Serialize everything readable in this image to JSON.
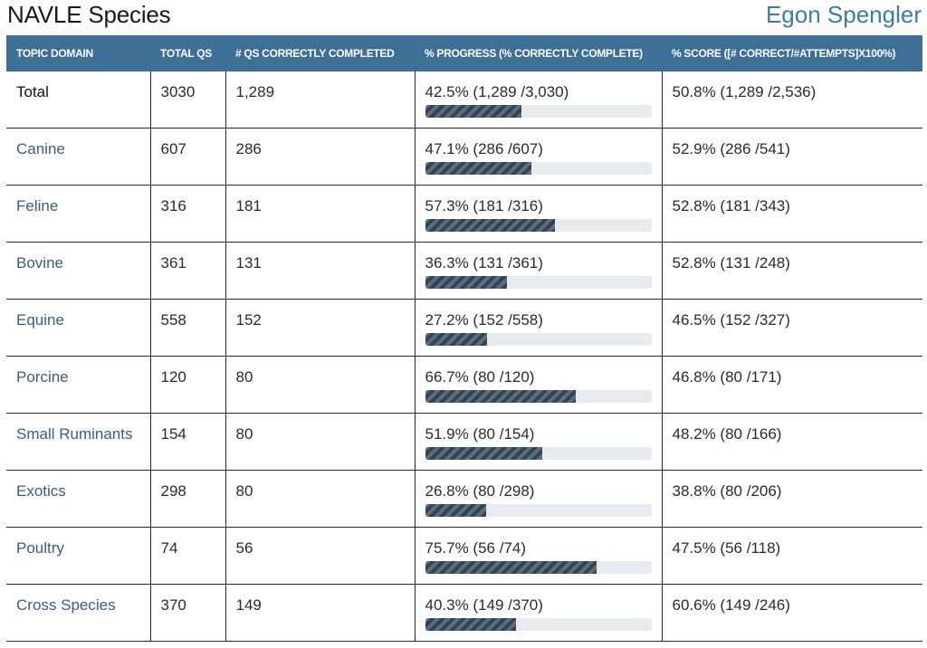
{
  "header": {
    "title": "NAVLE Species",
    "user_name": "Egon Spengler"
  },
  "table": {
    "columns": [
      "TOPIC DOMAIN",
      "TOTAL QS",
      "# QS CORRECTLY COMPLETED",
      "% PROGRESS (% CORRECTLY COMPLETE)",
      "% SCORE ([# CORRECT/#ATTEMPTS]X100%)"
    ],
    "rows": [
      {
        "domain": "Total",
        "total": "3030",
        "correct": "1,289",
        "progress_text": "42.5% (1,289 /3,030)",
        "progress": 0.425,
        "score_text": "50.8% (1,289 /2,536)"
      },
      {
        "domain": "Canine",
        "total": "607",
        "correct": "286",
        "progress_text": "47.1% (286 /607)",
        "progress": 0.471,
        "score_text": "52.9% (286 /541)"
      },
      {
        "domain": "Feline",
        "total": "316",
        "correct": "181",
        "progress_text": "57.3% (181 /316)",
        "progress": 0.573,
        "score_text": "52.8% (181 /343)"
      },
      {
        "domain": "Bovine",
        "total": "361",
        "correct": "131",
        "progress_text": "36.3% (131 /361)",
        "progress": 0.363,
        "score_text": "52.8% (131 /248)"
      },
      {
        "domain": "Equine",
        "total": "558",
        "correct": "152",
        "progress_text": "27.2% (152 /558)",
        "progress": 0.272,
        "score_text": "46.5% (152 /327)"
      },
      {
        "domain": "Porcine",
        "total": "120",
        "correct": "80",
        "progress_text": "66.7% (80 /120)",
        "progress": 0.667,
        "score_text": "46.8% (80 /171)"
      },
      {
        "domain": "Small Ruminants",
        "total": "154",
        "correct": "80",
        "progress_text": "51.9% (80 /154)",
        "progress": 0.519,
        "score_text": "48.2% (80 /166)"
      },
      {
        "domain": "Exotics",
        "total": "298",
        "correct": "80",
        "progress_text": "26.8% (80 /298)",
        "progress": 0.268,
        "score_text": "38.8% (80 /206)"
      },
      {
        "domain": "Poultry",
        "total": "74",
        "correct": "56",
        "progress_text": "75.7% (56 /74)",
        "progress": 0.757,
        "score_text": "47.5% (56 /118)"
      },
      {
        "domain": "Cross Species",
        "total": "370",
        "correct": "149",
        "progress_text": "40.3% (149 /370)",
        "progress": 0.403,
        "score_text": "60.6% (149 /246)"
      }
    ]
  },
  "colors": {
    "header_bg": "#3e6f96",
    "user_name": "#3f7ca2",
    "bar_fill": "#2f4456",
    "bar_track": "#e8ebee"
  }
}
